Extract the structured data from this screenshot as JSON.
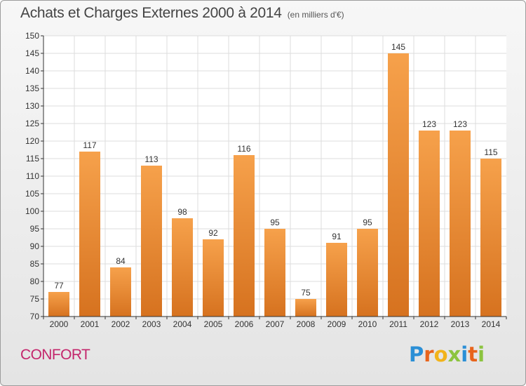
{
  "header": {
    "title": "Achats et Charges Externes 2000 à 2014",
    "subtitle": "(en milliers d'€)"
  },
  "footer": {
    "commune": "CONFORT",
    "logo_text": "Proxiti",
    "logo_letter_colors": [
      "#2b8fd6",
      "#e8641c",
      "#f2b31a",
      "#8cc43f",
      "#2b8fd6",
      "#e8641c",
      "#8cc43f"
    ]
  },
  "colors": {
    "bar_light": "#f6a14b",
    "bar_dark": "#d6721f",
    "axis": "#333333",
    "grid": "#dcdcdc"
  },
  "chart_data": {
    "type": "bar",
    "title": "Achats et Charges Externes 2000 à 2014",
    "subtitle": "(en milliers d'€)",
    "xlabel": "",
    "ylabel": "",
    "categories": [
      "2000",
      "2001",
      "2002",
      "2003",
      "2004",
      "2005",
      "2006",
      "2007",
      "2008",
      "2009",
      "2010",
      "2011",
      "2012",
      "2013",
      "2014"
    ],
    "values": [
      77,
      117,
      84,
      113,
      98,
      92,
      116,
      95,
      75,
      91,
      95,
      145,
      123,
      123,
      115
    ],
    "ylim": [
      70,
      150
    ],
    "ytick_step": 5,
    "grid": true,
    "data_labels": true
  }
}
